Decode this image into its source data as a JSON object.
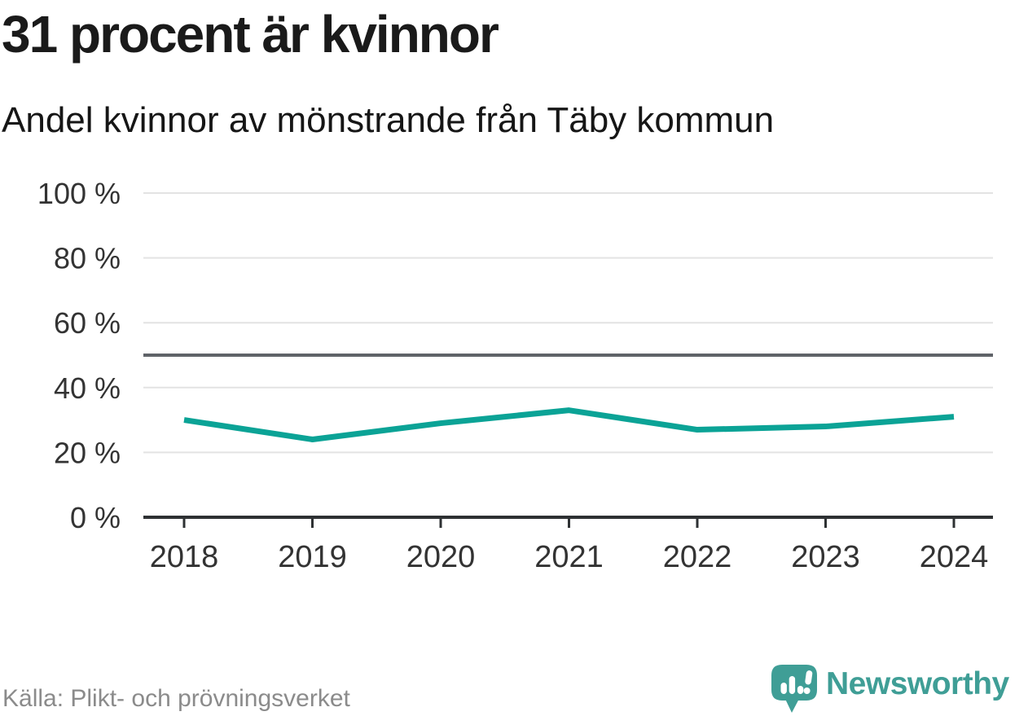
{
  "title": "31 procent är kvinnor",
  "subtitle": "Andel kvinnor av mönstrande från Täby kommun",
  "source": "Källa: Plikt- och prövningsverket",
  "logo": {
    "name": "Newsworthy"
  },
  "colors": {
    "accent_line": "#0ba396",
    "reference_line": "#5f6368",
    "grid": "#e3e3e3",
    "axis": "#2e3133",
    "tick_label": "#333333",
    "source_text": "#8b8b8b",
    "brand_teal": "#3f9e96",
    "title_text": "#1a1a1a"
  },
  "chart_data": {
    "type": "line",
    "x": [
      "2018",
      "2019",
      "2020",
      "2021",
      "2022",
      "2023",
      "2024"
    ],
    "series": [
      {
        "name": "Andel kvinnor av mönstrande",
        "color": "#0ba396",
        "values": [
          30,
          24,
          29,
          33,
          27,
          28,
          31
        ]
      }
    ],
    "title": "31 procent är kvinnor",
    "subtitle": "Andel kvinnor av mönstrande från Täby kommun",
    "xlabel": "",
    "ylabel": "",
    "ylim": [
      0,
      100
    ],
    "yticks": [
      0,
      20,
      40,
      60,
      80,
      100
    ],
    "ytick_labels": [
      "0 %",
      "20 %",
      "40 %",
      "60 %",
      "80 %",
      "100 %"
    ],
    "reference_line": 50,
    "grid": true,
    "legend": false
  }
}
